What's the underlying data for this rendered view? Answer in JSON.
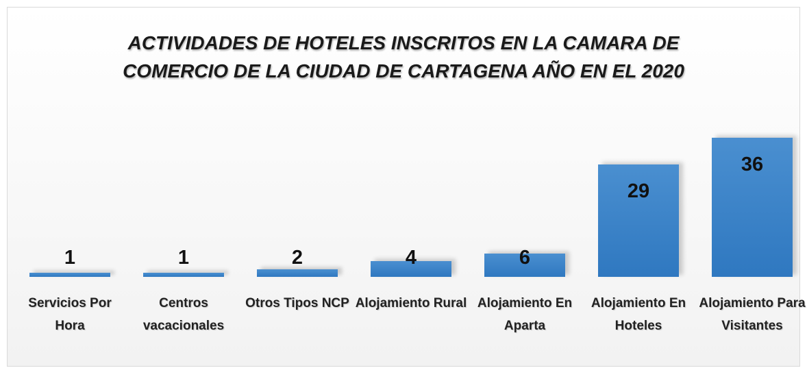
{
  "chart_data": {
    "type": "bar",
    "title": "ACTIVIDADES DE HOTELES INSCRITOS EN LA CAMARA DE COMERCIO DE LA CIUDAD DE CARTAGENA AÑO EN EL 2020",
    "categories": [
      "Servicios Por Hora",
      "Centros vacacionales",
      "Otros Tipos NCP",
      "Alojamiento Rural",
      "Alojamiento En Aparta",
      "Alojamiento En Hoteles",
      "Alojamiento Para Visitantes"
    ],
    "values": [
      1,
      1,
      2,
      4,
      6,
      29,
      36
    ],
    "color": "#4a8fd0"
  }
}
